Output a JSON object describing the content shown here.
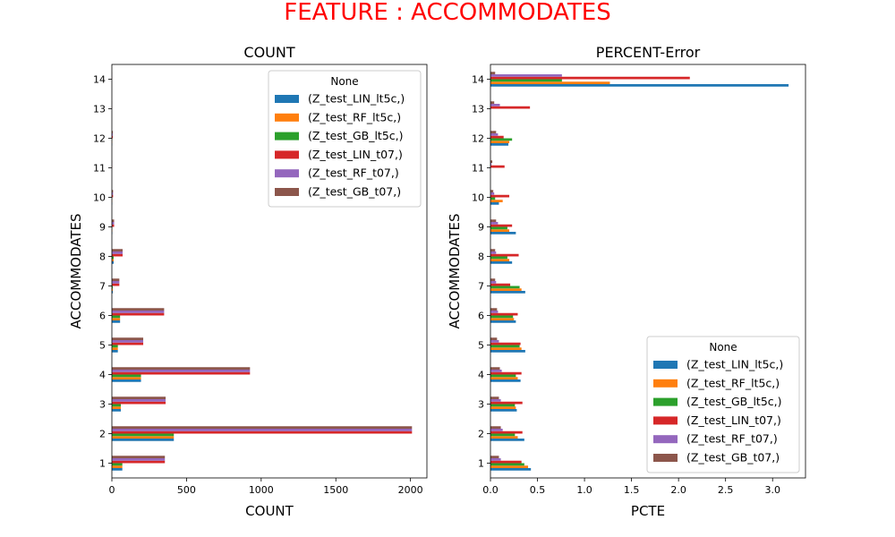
{
  "suptitle": "FEATURE : ACCOMMODATES",
  "suptitle_color": "#ff0000",
  "series_colors": [
    "#1f77b4",
    "#ff7f0e",
    "#2ca02c",
    "#d62728",
    "#9467bd",
    "#8c564b"
  ],
  "chart_data": [
    {
      "type": "bar",
      "orientation": "horizontal",
      "title": "COUNT",
      "xlabel": "COUNT",
      "ylabel": "ACCOMMODATES",
      "categories": [
        "1",
        "2",
        "3",
        "4",
        "5",
        "6",
        "7",
        "8",
        "9",
        "10",
        "11",
        "12",
        "13",
        "14"
      ],
      "xlim": [
        0,
        2110
      ],
      "xticks": [
        0,
        500,
        1000,
        1500,
        2000
      ],
      "xtick_labels": [
        "0",
        "500",
        "1000",
        "1500",
        "2000"
      ],
      "legend": {
        "title": "None",
        "placement": "upper right"
      },
      "series": [
        {
          "name": "(Z_test_LIN_lt5c,)",
          "values": [
            70,
            415,
            60,
            195,
            40,
            55,
            6,
            12,
            3,
            2,
            0,
            2,
            0,
            0
          ]
        },
        {
          "name": "(Z_test_RF_lt5c,)",
          "values": [
            70,
            415,
            60,
            195,
            40,
            55,
            6,
            12,
            3,
            2,
            0,
            2,
            0,
            0
          ]
        },
        {
          "name": "(Z_test_GB_lt5c,)",
          "values": [
            70,
            415,
            60,
            195,
            40,
            55,
            6,
            12,
            3,
            2,
            0,
            2,
            0,
            0
          ]
        },
        {
          "name": "(Z_test_LIN_t07,)",
          "values": [
            355,
            2010,
            360,
            925,
            210,
            350,
            50,
            72,
            15,
            8,
            2,
            6,
            1,
            1
          ]
        },
        {
          "name": "(Z_test_RF_t07,)",
          "values": [
            355,
            2010,
            360,
            925,
            210,
            350,
            50,
            72,
            15,
            8,
            2,
            6,
            1,
            1
          ]
        },
        {
          "name": "(Z_test_GB_t07,)",
          "values": [
            355,
            2010,
            360,
            925,
            210,
            350,
            50,
            72,
            15,
            8,
            2,
            6,
            1,
            1
          ]
        }
      ]
    },
    {
      "type": "bar",
      "orientation": "horizontal",
      "title": "PERCENT-Error",
      "xlabel": "PCTE",
      "ylabel": "ACCOMMODATES",
      "categories": [
        "1",
        "2",
        "3",
        "4",
        "5",
        "6",
        "7",
        "8",
        "9",
        "10",
        "11",
        "12",
        "13",
        "14"
      ],
      "xlim": [
        0,
        3.35
      ],
      "xticks": [
        0,
        0.5,
        1.0,
        1.5,
        2.0,
        2.5,
        3.0
      ],
      "xtick_labels": [
        "0.0",
        "0.5",
        "1.0",
        "1.5",
        "2.0",
        "2.5",
        "3.0"
      ],
      "legend": {
        "title": "None",
        "placement": "lower right"
      },
      "series": [
        {
          "name": "(Z_test_LIN_lt5c,)",
          "values": [
            0.43,
            0.36,
            0.28,
            0.32,
            0.37,
            0.27,
            0.37,
            0.23,
            0.27,
            0.09,
            0.0,
            0.19,
            0.0,
            3.17
          ]
        },
        {
          "name": "(Z_test_RF_lt5c,)",
          "values": [
            0.4,
            0.29,
            0.27,
            0.29,
            0.33,
            0.25,
            0.33,
            0.2,
            0.2,
            0.13,
            0.0,
            0.2,
            0.0,
            1.27
          ]
        },
        {
          "name": "(Z_test_GB_lt5c,)",
          "values": [
            0.36,
            0.26,
            0.26,
            0.27,
            0.31,
            0.24,
            0.31,
            0.18,
            0.18,
            0.05,
            0.0,
            0.23,
            0.0,
            0.76
          ]
        },
        {
          "name": "(Z_test_LIN_t07,)",
          "values": [
            0.33,
            0.34,
            0.34,
            0.33,
            0.32,
            0.29,
            0.21,
            0.3,
            0.23,
            0.2,
            0.15,
            0.14,
            0.42,
            2.12
          ]
        },
        {
          "name": "(Z_test_RF_t07,)",
          "values": [
            0.11,
            0.13,
            0.11,
            0.12,
            0.09,
            0.08,
            0.06,
            0.06,
            0.08,
            0.04,
            0.01,
            0.08,
            0.1,
            0.76
          ]
        },
        {
          "name": "(Z_test_GB_t07,)",
          "values": [
            0.09,
            0.11,
            0.09,
            0.1,
            0.07,
            0.07,
            0.05,
            0.05,
            0.06,
            0.03,
            0.02,
            0.06,
            0.04,
            0.05
          ]
        }
      ]
    }
  ]
}
